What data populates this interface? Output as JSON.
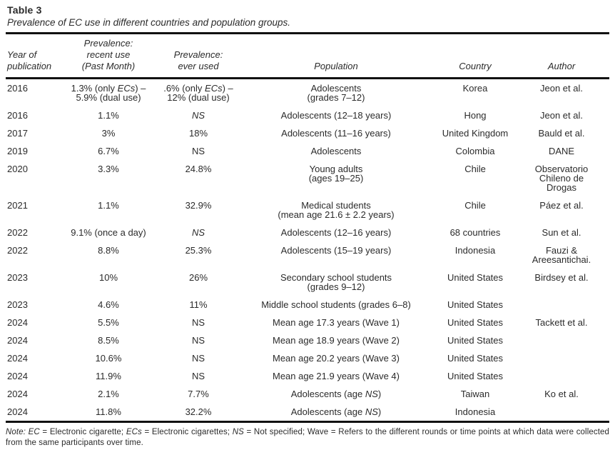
{
  "page": {
    "title": "Table 3",
    "subtitle": "Prevalence of EC use in different countries and population groups."
  },
  "table": {
    "columns": [
      {
        "key": "year",
        "label": "Year of\npublication"
      },
      {
        "key": "recent_use",
        "label": "Prevalence:\nrecent use\n(Past Month)"
      },
      {
        "key": "ever_used",
        "label": "Prevalence:\never used"
      },
      {
        "key": "population",
        "label": "Population"
      },
      {
        "key": "country",
        "label": "Country"
      },
      {
        "key": "author",
        "label": "Author"
      }
    ],
    "rows": [
      [
        "2016",
        "1.3% (only *ECs*) –\n5.9% (dual use)",
        ".6% (only *ECs*) –\n12% (dual use)",
        "Adolescents\n(grades 7–12)",
        "Korea",
        "Jeon et al."
      ],
      [
        "2016",
        "1.1%",
        "*NS*",
        "Adolescents (12–18 years)",
        "Hong",
        "Jeon et al."
      ],
      [
        "2017",
        "3%",
        "18%",
        "Adolescents (11–16 years)",
        "United Kingdom",
        "Bauld et al."
      ],
      [
        "2019",
        "6.7%",
        "NS",
        "Adolescents",
        "Colombia",
        "DANE"
      ],
      [
        "2020",
        "3.3%",
        "24.8%",
        "Young adults\n(ages 19–25)",
        "Chile",
        "Observatorio\nChileno de\nDrogas"
      ],
      [
        "2021",
        "1.1%",
        "32.9%",
        "Medical students\n(mean age 21.6 ± 2.2 years)",
        "Chile",
        "Páez et al."
      ],
      [
        "2022",
        "9.1% (once a day)",
        "*NS*",
        "Adolescents (12–16 years)",
        "68 countries",
        "Sun et al."
      ],
      [
        "2022",
        "8.8%",
        "25.3%",
        "Adolescents (15–19 years)",
        "Indonesia",
        "Fauzi &\nAreesantichai."
      ],
      [
        "2023",
        "10%",
        "26%",
        "Secondary school students\n(grades 9–12)",
        "United States",
        "Birdsey et al."
      ],
      [
        "2023",
        "4.6%",
        "11%",
        "Middle school students (grades 6–8)",
        "United States",
        ""
      ],
      [
        "2024",
        "5.5%",
        "NS",
        "Mean age 17.3 years (Wave 1)",
        "United States",
        "Tackett et al."
      ],
      [
        "2024",
        "8.5%",
        "NS",
        "Mean age 18.9 years (Wave 2)",
        "United States",
        ""
      ],
      [
        "2024",
        "10.6%",
        "NS",
        "Mean age 20.2 years (Wave 3)",
        "United States",
        ""
      ],
      [
        "2024",
        "11.9%",
        "NS",
        "Mean age 21.9 years (Wave 4)",
        "United States",
        ""
      ],
      [
        "2024",
        "2.1%",
        "7.7%",
        "Adolescents (age *NS*)",
        "Taiwan",
        "Ko et al."
      ],
      [
        "2024",
        "11.8%",
        "32.2%",
        "Adolescents (age *NS*)",
        "Indonesia",
        ""
      ]
    ]
  },
  "note": "*Note:* *EC* = Electronic cigarette; *ECs* = Electronic cigarettes; *NS* = Not specified; Wave = Refers to the different rounds or time points at which data were collected from the same participants over time.",
  "colors": {
    "text": "#2b2b2b",
    "rule": "#111111",
    "background": "#ffffff"
  }
}
